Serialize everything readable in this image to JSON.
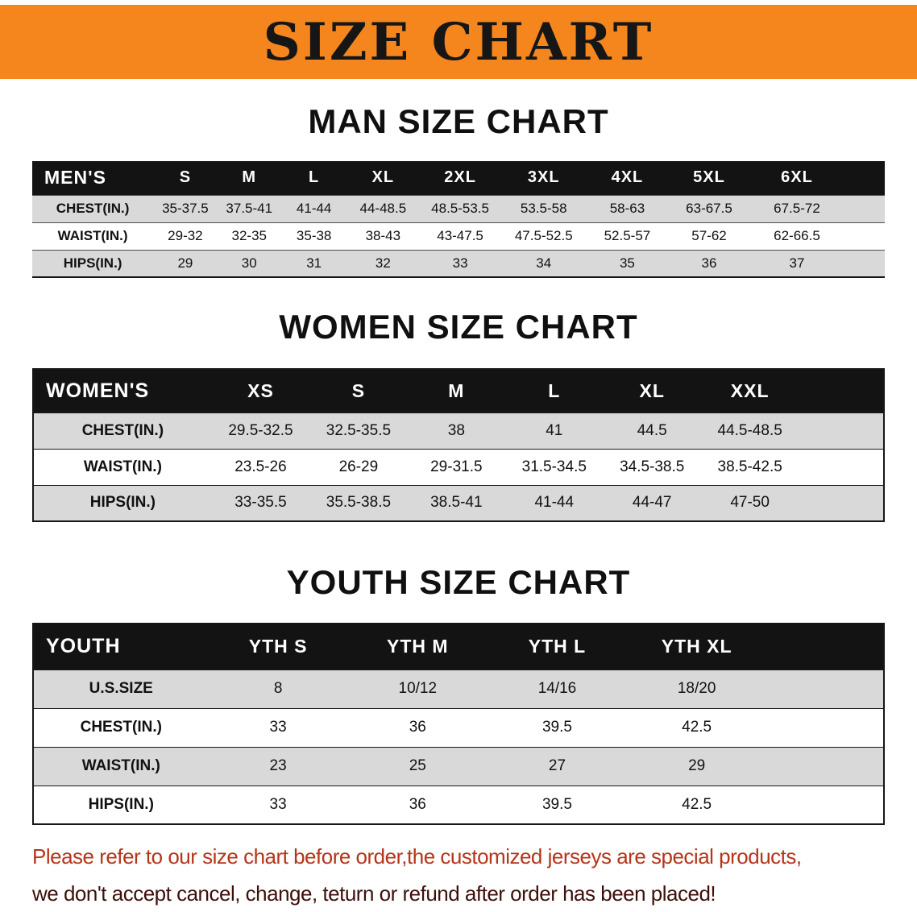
{
  "banner": {
    "title": "SIZE CHART",
    "bg_color": "#f5861e",
    "text_color": "#161616"
  },
  "sections": [
    {
      "id": "men",
      "heading": "MAN SIZE CHART",
      "table": {
        "corner": "MEN'S",
        "columns": [
          "S",
          "M",
          "L",
          "XL",
          "2XL",
          "3XL",
          "4XL",
          "5XL",
          "6XL"
        ],
        "rows": [
          {
            "label": "CHEST(IN.)",
            "values": [
              "35-37.5",
              "37.5-41",
              "41-44",
              "44-48.5",
              "48.5-53.5",
              "53.5-58",
              "58-63",
              "63-67.5",
              "67.5-72"
            ]
          },
          {
            "label": "WAIST(IN.)",
            "values": [
              "29-32",
              "32-35",
              "35-38",
              "38-43",
              "43-47.5",
              "47.5-52.5",
              "52.5-57",
              "57-62",
              "62-66.5"
            ]
          },
          {
            "label": "HIPS(IN.)",
            "values": [
              "29",
              "30",
              "31",
              "32",
              "33",
              "34",
              "35",
              "36",
              "37"
            ]
          }
        ]
      }
    },
    {
      "id": "women",
      "heading": "WOMEN SIZE CHART",
      "table": {
        "corner": "WOMEN'S",
        "columns": [
          "XS",
          "S",
          "M",
          "L",
          "XL",
          "XXL"
        ],
        "rows": [
          {
            "label": "CHEST(IN.)",
            "values": [
              "29.5-32.5",
              "32.5-35.5",
              "38",
              "41",
              "44.5",
              "44.5-48.5"
            ]
          },
          {
            "label": "WAIST(IN.)",
            "values": [
              "23.5-26",
              "26-29",
              "29-31.5",
              "31.5-34.5",
              "34.5-38.5",
              "38.5-42.5"
            ]
          },
          {
            "label": "HIPS(IN.)",
            "values": [
              "33-35.5",
              "35.5-38.5",
              "38.5-41",
              "41-44",
              "44-47",
              "47-50"
            ]
          }
        ]
      }
    },
    {
      "id": "youth",
      "heading": "YOUTH SIZE CHART",
      "table": {
        "corner": "YOUTH",
        "columns": [
          "YTH S",
          "YTH M",
          "YTH L",
          "YTH XL"
        ],
        "rows": [
          {
            "label": "U.S.SIZE",
            "values": [
              "8",
              "10/12",
              "14/16",
              "18/20"
            ]
          },
          {
            "label": "CHEST(IN.)",
            "values": [
              "33",
              "36",
              "39.5",
              "42.5"
            ]
          },
          {
            "label": "WAIST(IN.)",
            "values": [
              "23",
              "25",
              "27",
              "29"
            ]
          },
          {
            "label": "HIPS(IN.)",
            "values": [
              "33",
              "36",
              "39.5",
              "42.5"
            ]
          }
        ]
      }
    }
  ],
  "footer": {
    "line1": "Please refer to our size chart before order,the customized jerseys are special products,",
    "line2": "we don't accept cancel, change, teturn or refund after order has been placed!",
    "line1_color": "#b5351b",
    "line2_color": "#3d100a"
  },
  "colors": {
    "table_header_bg": "#131313",
    "table_header_text": "#ffffff",
    "row_stripe": "#d9d9d9",
    "row_alt": "#ffffff",
    "table_border": "#161616"
  }
}
